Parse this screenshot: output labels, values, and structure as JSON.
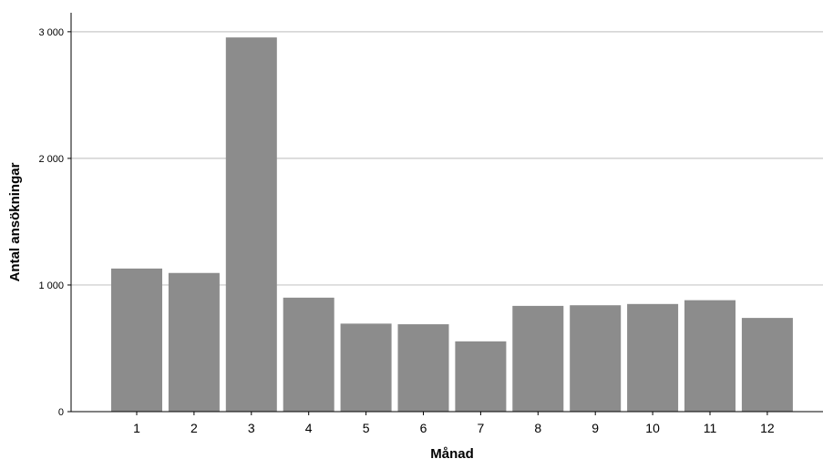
{
  "chart_data": {
    "type": "bar",
    "title": "",
    "xlabel": "Månad",
    "ylabel": "Antal ansökningar",
    "categories": [
      "1",
      "2",
      "3",
      "4",
      "5",
      "6",
      "7",
      "8",
      "9",
      "10",
      "11",
      "12"
    ],
    "values": [
      1130,
      1095,
      2955,
      900,
      695,
      690,
      555,
      835,
      840,
      850,
      880,
      740
    ],
    "ylim": [
      0,
      3150
    ],
    "yticks": [
      0,
      1000,
      2000,
      3000
    ],
    "ytick_labels": [
      "0",
      "1 000",
      "2 000",
      "3 000"
    ],
    "grid": "horizontal",
    "legend": "none",
    "colors": {
      "bar": "#8c8c8c",
      "grid": "#c8c8c8",
      "axis": "#000000",
      "background": "#ffffff"
    }
  }
}
